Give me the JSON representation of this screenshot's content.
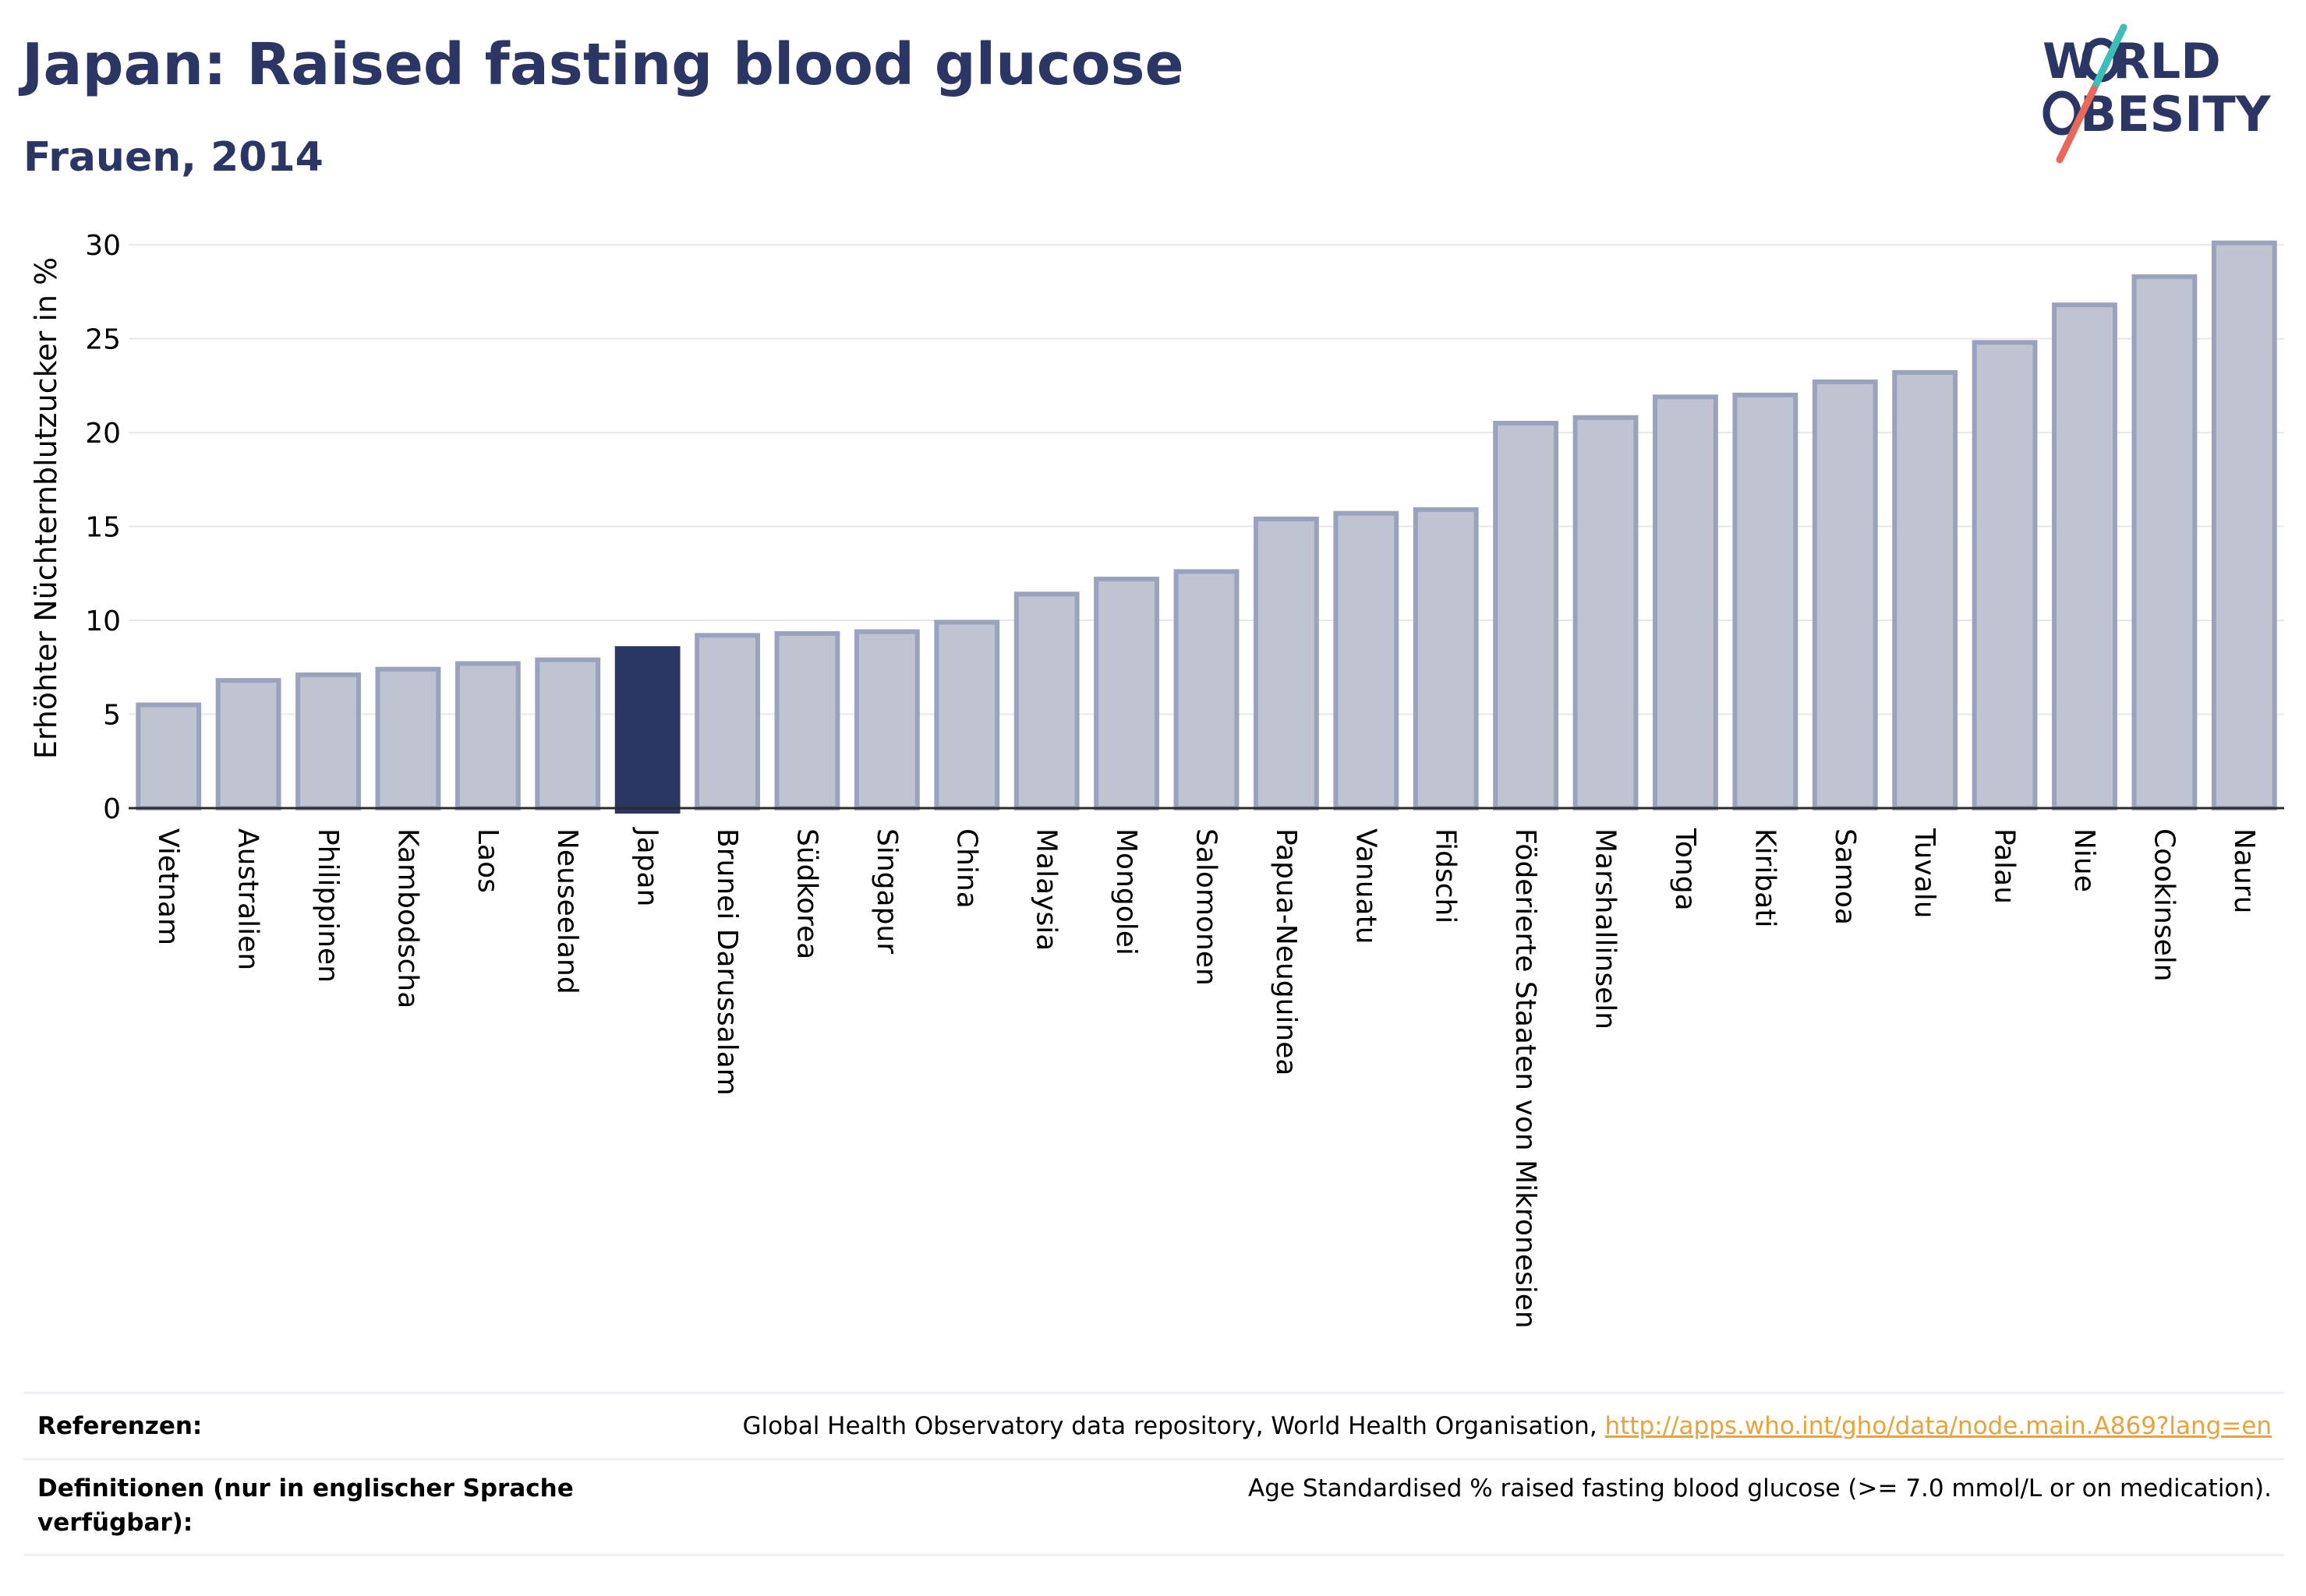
{
  "header": {
    "title": "Japan: Raised fasting blood glucose",
    "subtitle": "Frauen, 2014"
  },
  "logo": {
    "line1": "W RLD",
    "line2": "BESITY",
    "accent_teal": "#3dbfb8",
    "accent_coral": "#e8685a",
    "text_color": "#2b3664"
  },
  "chart_data": {
    "type": "bar",
    "ylabel": "Erhöhter Nüchternblutzucker in %",
    "ylim": [
      0,
      31
    ],
    "yticks": [
      0,
      5,
      10,
      15,
      20,
      25,
      30
    ],
    "grid": true,
    "highlight_category": "Japan",
    "colors": {
      "bar": "#c0c4d2",
      "bar_border": "#9ba2bb",
      "highlight": "#2b3664"
    },
    "categories": [
      "Vietnam",
      "Australien",
      "Philippinen",
      "Kambodscha",
      "Laos",
      "Neuseeland",
      "Japan",
      "Brunei Darussalam",
      "Südkorea",
      "Singapur",
      "China",
      "Malaysia",
      "Mongolei",
      "Salomonen",
      "Papua-Neuguinea",
      "Vanuatu",
      "Fidschi",
      "Föderierte Staaten von Mikronesien",
      "Marshallinseln",
      "Tonga",
      "Kiribati",
      "Samoa",
      "Tuvalu",
      "Palau",
      "Niue",
      "Cookinseln",
      "Nauru"
    ],
    "values": [
      5.5,
      6.8,
      7.1,
      7.4,
      7.7,
      7.9,
      8.5,
      9.2,
      9.3,
      9.4,
      9.9,
      11.4,
      12.2,
      12.6,
      15.4,
      15.7,
      15.9,
      20.5,
      20.8,
      21.9,
      22.0,
      22.7,
      23.2,
      24.8,
      26.8,
      28.3,
      30.1
    ]
  },
  "footer": {
    "references_label": "Referenzen:",
    "references_text": "Global Health Observatory data repository, World Health Organisation,",
    "references_link": "http://apps.who.int/gho/data/node.main.A869?lang=en",
    "definitions_label": "Definitionen (nur in englischer Sprache verfügbar):",
    "definitions_text": "Age Standardised % raised fasting blood glucose (>= 7.0 mmol/L or on medication)."
  }
}
